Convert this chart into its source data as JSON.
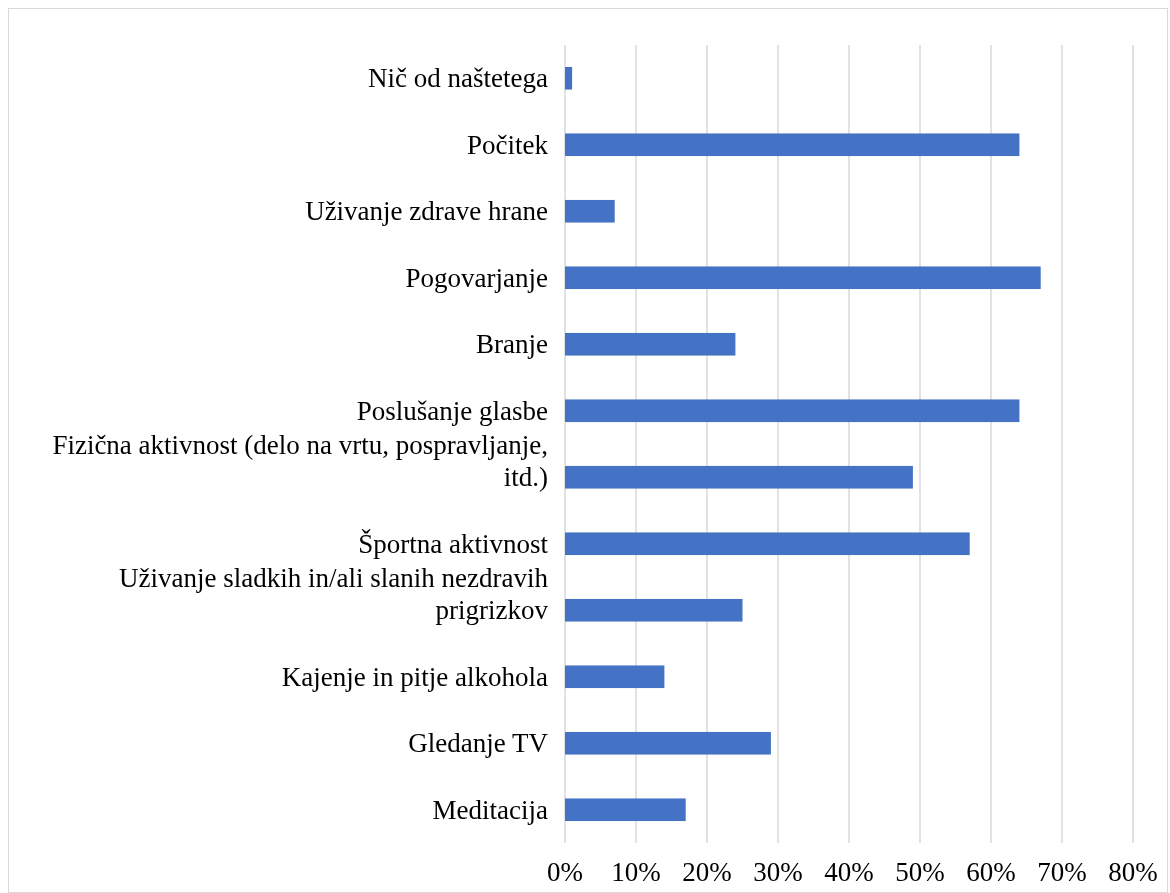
{
  "chart_data": {
    "type": "bar",
    "orientation": "horizontal",
    "categories": [
      "Nič od naštetega",
      "Počitek",
      "Uživanje zdrave hrane",
      "Pogovarjanje",
      "Branje",
      "Poslušanje glasbe",
      "Fizična aktivnost (delo na vrtu, pospravljanje, itd.)",
      "Športna aktivnost",
      "Uživanje sladkih in/ali slanih nezdravih prigrizkov",
      "Kajenje in pitje alkohola",
      "Gledanje TV",
      "Meditacija"
    ],
    "values": [
      1,
      64,
      7,
      67,
      24,
      64,
      49,
      57,
      25,
      14,
      29,
      17
    ],
    "color": "#4472c4",
    "xlim": [
      0,
      80
    ],
    "xticks": [
      {
        "value": 0,
        "label": "0%"
      },
      {
        "value": 10,
        "label": "10%"
      },
      {
        "value": 20,
        "label": "20%"
      },
      {
        "value": 30,
        "label": "30%"
      },
      {
        "value": 40,
        "label": "40%"
      },
      {
        "value": 50,
        "label": "50%"
      },
      {
        "value": 60,
        "label": "60%"
      },
      {
        "value": 70,
        "label": "70%"
      },
      {
        "value": 80,
        "label": "80%"
      }
    ],
    "grid": "x"
  }
}
